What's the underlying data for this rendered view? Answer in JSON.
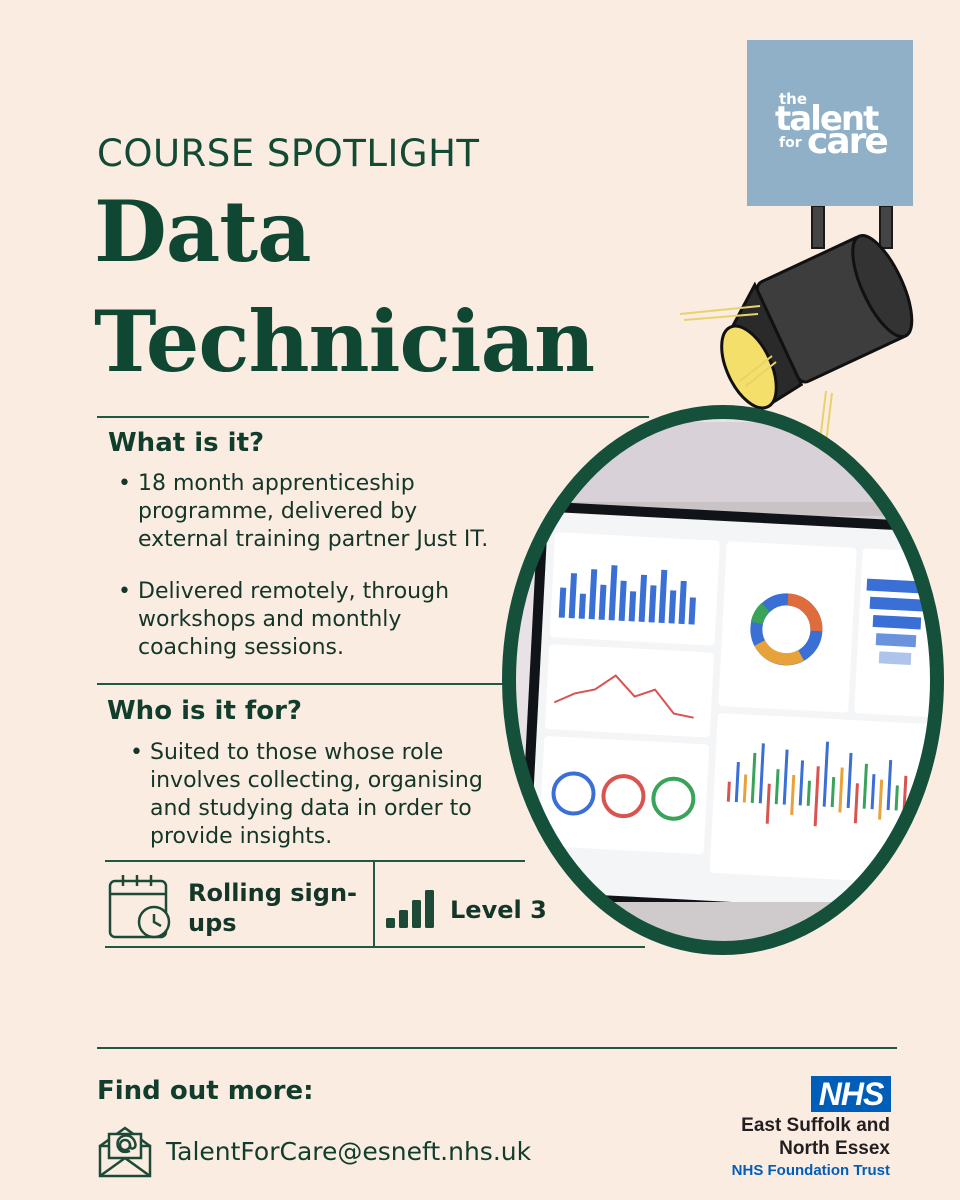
{
  "header": {
    "eyebrow": "COURSE SPOTLIGHT",
    "title_line1": "Data",
    "title_line2": "Technician"
  },
  "logo": {
    "line1": "the",
    "line2": "talent",
    "line3": "for",
    "line4": "care",
    "bg_color": "#8fb0c6"
  },
  "what": {
    "heading": "What is it?",
    "bullets": [
      [
        "18 month apprenticeship",
        "programme, delivered by",
        "external training partner Just IT."
      ],
      [
        "Delivered remotely, through",
        "workshops and monthly",
        "coaching sessions."
      ]
    ]
  },
  "who": {
    "heading": "Who is it for?",
    "bullets": [
      [
        "Suited to those whose role",
        "involves collecting, organising",
        "and studying data in order to",
        "provide insights."
      ]
    ]
  },
  "features": {
    "signup_line1": "Rolling sign-",
    "signup_line2": "ups",
    "signup_icon": "calendar-clock-icon",
    "level": "Level 3",
    "level_icon": "signal-bars-icon"
  },
  "footer": {
    "label": "Find out more:",
    "email": "TalentForCare@esneft.nhs.uk",
    "email_icon": "envelope-at-icon"
  },
  "nhs": {
    "badge": "NHS",
    "line1": "East Suffolk and",
    "line2": "North Essex",
    "line3": "NHS Foundation Trust",
    "badge_color": "#005eb8"
  },
  "colors": {
    "background": "#fbece2",
    "primary_green": "#0f4733",
    "frame_green": "#15503a"
  }
}
